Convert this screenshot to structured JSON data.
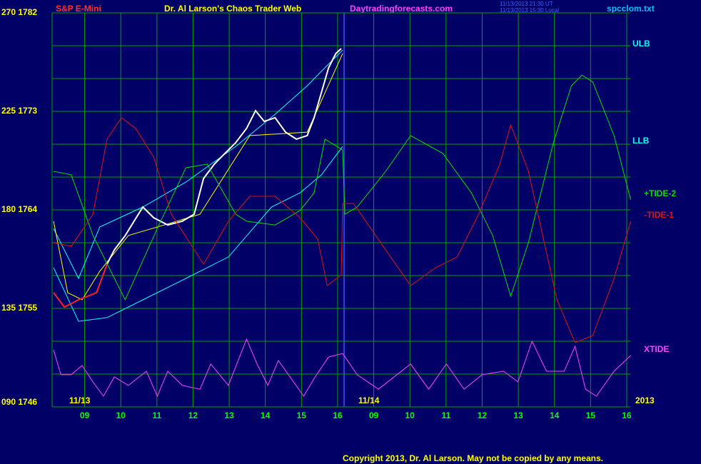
{
  "chart_data": {
    "type": "line",
    "instrument": "S&P E-Mini",
    "title": "Dr. Al Larson's Chaos Trader Web",
    "site": "Daytradingforecasts.com",
    "timestamps": [
      "11/13/2013 21:30 UT",
      "11/13/2013 15:30 Local"
    ],
    "file": "spcclom.txt",
    "copyright": "Copyright 2013, Dr. Al Larson. May not be copied by any means.",
    "date_labels": [
      "11/13",
      "11/14",
      "2013"
    ],
    "band_labels": [
      "ULB",
      "LLB"
    ],
    "grid": true,
    "xlim": [
      -0.9,
      15.1
    ],
    "ylim": [
      90,
      270
    ],
    "xticks": [
      {
        "value": 0,
        "label": "09"
      },
      {
        "value": 1,
        "label": "10"
      },
      {
        "value": 2,
        "label": "11"
      },
      {
        "value": 3,
        "label": "12"
      },
      {
        "value": 4,
        "label": "13"
      },
      {
        "value": 5,
        "label": "14"
      },
      {
        "value": 6,
        "label": "15"
      },
      {
        "value": 7,
        "label": "16"
      },
      {
        "value": 8,
        "label": "09"
      },
      {
        "value": 9,
        "label": "10"
      },
      {
        "value": 10,
        "label": "11"
      },
      {
        "value": 11,
        "label": "12"
      },
      {
        "value": 12,
        "label": "13"
      },
      {
        "value": 13,
        "label": "14"
      },
      {
        "value": 14,
        "label": "15"
      },
      {
        "value": 15,
        "label": "16"
      }
    ],
    "yticks": [
      {
        "value": 270,
        "label": "270 1782"
      },
      {
        "value": 225,
        "label": "225 1773"
      },
      {
        "value": 180,
        "label": "180 1764"
      },
      {
        "value": 135,
        "label": "135 1755"
      },
      {
        "value": 90,
        "label": "090 1746"
      }
    ],
    "ygrid": [
      105,
      120,
      150,
      165,
      195,
      210,
      240,
      255
    ],
    "series": [
      {
        "color": "#00ffff",
        "x": [
          -0.86,
          -0.17,
          0.42,
          1.61,
          2.8,
          4.18,
          5.27,
          6.16,
          6.55,
          7.14
        ],
        "values": [
          171.5,
          148.7,
          172.2,
          181.3,
          192.7,
          209.0,
          223.7,
          236.7,
          243.3,
          253.0
        ]
      },
      {
        "color": "#00ffff",
        "x": [
          -0.86,
          -0.17,
          0.62,
          1.61,
          2.8,
          3.98,
          5.17,
          5.96,
          6.55,
          7.14
        ],
        "values": [
          153.6,
          129.1,
          130.8,
          138.9,
          148.7,
          158.5,
          181.3,
          187.8,
          196.0,
          209.0
        ]
      },
      {
        "color": "#ffff00",
        "x": [
          -0.86,
          -0.47,
          -0.07,
          0.42,
          1.21,
          2.2,
          3.19,
          4.57,
          6.16,
          7.14
        ],
        "values": [
          174.8,
          142.2,
          138.9,
          152.0,
          168.3,
          173.1,
          178.0,
          213.9,
          215.5,
          251.4
        ]
      },
      {
        "color": "#ff2020",
        "x": [
          -0.86,
          -0.56,
          -0.17,
          0.33,
          0.62
        ],
        "values": [
          142.2,
          135.6,
          138.9,
          142.2,
          155.2
        ]
      },
      {
        "color": "#ffffff",
        "x": [
          0.62,
          0.82,
          1.12,
          1.61,
          1.91,
          2.3,
          2.7,
          3.03,
          3.29,
          3.59,
          3.88,
          4.18,
          4.48,
          4.73,
          4.97,
          5.27,
          5.56,
          5.86,
          6.16,
          6.35,
          6.55,
          6.75,
          6.95,
          7.1
        ],
        "values": [
          155.2,
          161.7,
          168.2,
          181.3,
          176.4,
          173.1,
          174.8,
          178.0,
          194.3,
          200.9,
          205.8,
          210.7,
          217.2,
          225.3,
          220.4,
          222.1,
          215.5,
          212.3,
          213.9,
          222.1,
          233.5,
          244.9,
          251.4,
          253.7
        ]
      },
      {
        "name": "+TIDE-2",
        "color": "#00e000",
        "x": [
          -0.86,
          -0.37,
          0.23,
          1.12,
          2.01,
          2.8,
          3.39,
          4.18,
          4.48,
          5.27,
          5.96,
          6.35,
          6.65,
          7.14,
          7.2,
          7.54,
          8.33,
          9.02,
          9.91,
          10.7,
          11.29,
          11.79,
          12.28,
          12.97,
          13.47,
          13.76,
          14.06,
          14.65,
          15.11
        ],
        "values": [
          197.6,
          196.0,
          168.3,
          138.9,
          171.5,
          199.2,
          200.9,
          178.0,
          174.8,
          173.1,
          179.7,
          187.8,
          212.3,
          207.4,
          178.0,
          181.3,
          197.6,
          213.9,
          205.8,
          187.8,
          168.3,
          140.5,
          165.0,
          210.7,
          236.7,
          241.6,
          238.4,
          213.9,
          184.6
        ]
      },
      {
        "name": "-TIDE-1",
        "color": "#e01010",
        "x": [
          -0.86,
          -0.37,
          0.23,
          0.62,
          1.02,
          1.41,
          1.91,
          2.4,
          3.29,
          3.98,
          4.57,
          5.27,
          5.96,
          6.45,
          6.71,
          7.1,
          7.14,
          7.44,
          8.33,
          9.02,
          9.71,
          10.31,
          10.9,
          11.49,
          11.79,
          12.28,
          13.07,
          13.57,
          14.06,
          14.65,
          15.11
        ],
        "values": [
          165.0,
          163.4,
          178.0,
          212.3,
          222.1,
          217.2,
          204.1,
          178.0,
          155.2,
          174.8,
          186.2,
          186.2,
          176.4,
          166.6,
          145.4,
          150.3,
          182.9,
          182.9,
          161.7,
          145.4,
          153.6,
          158.5,
          178.0,
          200.9,
          218.8,
          197.6,
          138.9,
          119.3,
          122.6,
          148.7,
          174.8
        ]
      },
      {
        "name": "XTIDE",
        "color": "#ff40ff",
        "x": [
          -0.86,
          -0.66,
          -0.37,
          -0.07,
          0.23,
          0.52,
          0.82,
          1.21,
          1.71,
          2.01,
          2.3,
          2.7,
          3.19,
          3.49,
          3.98,
          4.48,
          4.77,
          5.07,
          5.36,
          6.06,
          6.35,
          6.75,
          7.14,
          7.54,
          8.13,
          9.02,
          9.52,
          10.01,
          10.5,
          11.0,
          11.59,
          11.99,
          12.38,
          12.78,
          13.27,
          13.57,
          13.86,
          14.16,
          14.65,
          15.11
        ],
        "values": [
          116.1,
          104.7,
          104.7,
          108.9,
          101.4,
          94.9,
          103.7,
          99.8,
          106.3,
          94.9,
          106.3,
          99.8,
          98.1,
          109.6,
          99.8,
          121.0,
          109.6,
          99.8,
          111.2,
          94.9,
          103.0,
          112.8,
          114.4,
          104.7,
          98.1,
          109.6,
          98.1,
          109.6,
          98.1,
          104.7,
          106.3,
          101.4,
          120.0,
          106.3,
          106.3,
          117.7,
          98.1,
          94.9,
          106.3,
          113.5
        ]
      }
    ]
  }
}
